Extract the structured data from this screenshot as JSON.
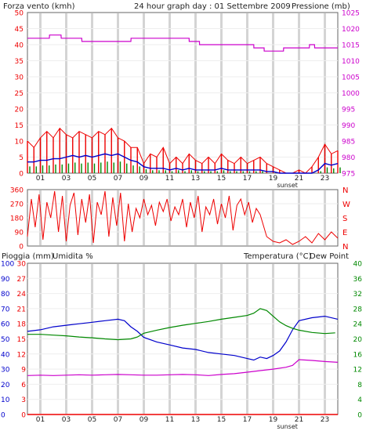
{
  "header": {
    "title": "24 hour graph day : 01 Settembre 2009"
  },
  "colors": {
    "wind": "#ee0000",
    "wind_avg": "#0000cc",
    "wind_mid": "#008800",
    "pressure": "#cc00cc",
    "direction": "#ee0000",
    "rain": "#ee0000",
    "humidity": "#0000cc",
    "temperature": "#008800",
    "dewpoint": "#cc00cc"
  },
  "chart_data": [
    {
      "type": "line",
      "panel": "wind-pressure",
      "title": "24 hour graph day : 01 Settembre 2009",
      "ylabel_left": "Forza vento (kmh)",
      "ylabel_right": "Pressione (mb)",
      "ylim_left": [
        0,
        50
      ],
      "ylim_right": [
        975,
        1025
      ],
      "yticks_left": [
        "0",
        "5",
        "10",
        "15",
        "20",
        "25",
        "30",
        "35",
        "40",
        "45",
        "50"
      ],
      "yticks_right": [
        "975",
        "980",
        "985",
        "990",
        "995",
        "1000",
        "1005",
        "1010",
        "1015",
        "1020",
        "1025"
      ],
      "xticks": [
        "01",
        "03",
        "05",
        "07",
        "09",
        "11",
        "13",
        "15",
        "17",
        "19",
        "21",
        "23"
      ],
      "annotation": "sunset",
      "series": [
        {
          "name": "Pressione",
          "axis": "right",
          "x": [
            0,
            1.7,
            1.71,
            2.6,
            2.61,
            4.2,
            4.21,
            8.0,
            8.01,
            12.5,
            12.51,
            13.3,
            13.31,
            17.5,
            17.51,
            18.3,
            18.31,
            19.8,
            19.81,
            21.8,
            21.81,
            22.2,
            22.21,
            24
          ],
          "y": [
            1017,
            1017,
            1018,
            1018,
            1017,
            1017,
            1016,
            1016,
            1017,
            1017,
            1016,
            1016,
            1015,
            1015,
            1014,
            1014,
            1013,
            1013,
            1014,
            1014,
            1015,
            1015,
            1014,
            1014
          ]
        },
        {
          "name": "Raffica",
          "axis": "left",
          "x": [
            0,
            0.5,
            1.0,
            1.5,
            2.0,
            2.5,
            3.0,
            3.5,
            4.0,
            4.5,
            5.0,
            5.5,
            6.0,
            6.5,
            7.0,
            7.5,
            8.0,
            8.5,
            9.0,
            9.5,
            10.0,
            10.5,
            11.0,
            11.5,
            12.0,
            12.5,
            13.0,
            13.5,
            14.0,
            14.5,
            15.0,
            15.5,
            16.0,
            16.5,
            17.0,
            17.5,
            18.0,
            18.5,
            19.0,
            19.5,
            20.0,
            20.5,
            21.0,
            21.5,
            22.0,
            22.5,
            23.0,
            23.5,
            24.0
          ],
          "y": [
            10,
            8,
            11,
            13,
            11,
            14,
            12,
            11,
            13,
            12,
            11,
            13,
            12,
            14,
            11,
            10,
            8,
            8,
            3,
            6,
            5,
            8,
            3,
            5,
            3,
            6,
            4,
            3,
            5,
            3,
            6,
            4,
            3,
            5,
            3,
            4,
            5,
            3,
            2,
            1,
            0,
            0,
            1,
            0,
            2,
            5,
            9,
            6,
            7
          ]
        },
        {
          "name": "Vento medio",
          "axis": "left",
          "x": [
            0,
            0.5,
            1.0,
            1.5,
            2.0,
            2.5,
            3.0,
            3.5,
            4.0,
            4.5,
            5.0,
            5.5,
            6.0,
            6.5,
            7.0,
            7.5,
            8.0,
            8.5,
            9.0,
            9.5,
            10.0,
            10.5,
            11.0,
            11.5,
            12.0,
            12.5,
            13.0,
            13.5,
            14.0,
            14.5,
            15.0,
            15.5,
            16.0,
            16.5,
            17.0,
            17.5,
            18.0,
            18.5,
            19.0,
            19.5,
            20.0,
            20.5,
            21.0,
            21.5,
            22.0,
            22.5,
            23.0,
            23.5,
            24.0
          ],
          "y": [
            3.5,
            3.5,
            4,
            4,
            4.5,
            4.5,
            5,
            5.5,
            5,
            5.5,
            5,
            5.5,
            6,
            5.5,
            6,
            5,
            4,
            3.5,
            2,
            1.5,
            1.5,
            1.5,
            1,
            1.5,
            1,
            1.5,
            1,
            1,
            1,
            1,
            1.5,
            1,
            1,
            1,
            1,
            1,
            1,
            0.5,
            0.5,
            0,
            0,
            0,
            0,
            0,
            0,
            1,
            3,
            2.5,
            3
          ]
        }
      ]
    },
    {
      "type": "line",
      "panel": "direction",
      "ylim": [
        0,
        360
      ],
      "yticks": [
        "0",
        "90",
        "180",
        "270",
        "360"
      ],
      "cardinals": [
        "N",
        "W",
        "S",
        "E",
        "N"
      ],
      "series": [
        {
          "name": "Direzione",
          "x": [
            0,
            0.3,
            0.6,
            0.9,
            1.2,
            1.5,
            1.8,
            2.1,
            2.4,
            2.7,
            3.0,
            3.3,
            3.6,
            3.9,
            4.2,
            4.5,
            4.8,
            5.1,
            5.4,
            5.7,
            6.0,
            6.3,
            6.6,
            6.9,
            7.2,
            7.5,
            7.8,
            8.1,
            8.4,
            8.7,
            9.0,
            9.3,
            9.6,
            9.9,
            10.2,
            10.5,
            10.8,
            11.1,
            11.4,
            11.7,
            12.0,
            12.3,
            12.6,
            12.9,
            13.2,
            13.5,
            13.8,
            14.1,
            14.4,
            14.7,
            15.0,
            15.3,
            15.6,
            15.9,
            16.2,
            16.5,
            16.8,
            17.1,
            17.4,
            17.7,
            18.0,
            18.5,
            19.0,
            19.5,
            20.0,
            20.5,
            21.0,
            21.5,
            22.0,
            22.5,
            23.0,
            23.5,
            24.0
          ],
          "y": [
            60,
            300,
            120,
            330,
            40,
            280,
            180,
            350,
            90,
            320,
            30,
            260,
            340,
            70,
            300,
            150,
            330,
            20,
            280,
            200,
            350,
            60,
            310,
            130,
            340,
            30,
            270,
            90,
            240,
            180,
            300,
            200,
            260,
            130,
            280,
            220,
            300,
            160,
            250,
            200,
            300,
            120,
            280,
            180,
            320,
            90,
            250,
            200,
            300,
            140,
            270,
            180,
            320,
            100,
            260,
            300,
            200,
            280,
            150,
            240,
            200,
            60,
            30,
            20,
            40,
            10,
            30,
            60,
            20,
            80,
            40,
            90,
            50
          ]
        }
      ]
    },
    {
      "type": "line",
      "panel": "rain-humidity-temperature",
      "ylabel_left": "Pioggia (mm)",
      "ylabel_left2": "Umidita %",
      "ylabel_right": "Temperatura (°C)",
      "ylabel_right2": "Dew Point",
      "ylim_rain": [
        0,
        30
      ],
      "ylim_humidity": [
        0,
        100
      ],
      "ylim_temperature": [
        0,
        40
      ],
      "yticks_humidity": [
        "0",
        "10",
        "20",
        "30",
        "40",
        "50",
        "60",
        "70",
        "80",
        "90",
        "100"
      ],
      "yticks_rain": [
        "0",
        "3",
        "6",
        "9",
        "12",
        "15",
        "18",
        "21",
        "24",
        "27",
        "30"
      ],
      "yticks_temperature": [
        "0",
        "4",
        "8",
        "12",
        "16",
        "20",
        "24",
        "28",
        "32",
        "36",
        "40"
      ],
      "xticks": [
        "01",
        "03",
        "05",
        "07",
        "09",
        "11",
        "13",
        "15",
        "17",
        "19",
        "21",
        "23"
      ],
      "annotation": "sunset",
      "series": [
        {
          "name": "Pioggia",
          "axis": "rain",
          "x": [
            0,
            24
          ],
          "y": [
            0,
            0
          ]
        },
        {
          "name": "Umidita",
          "axis": "humidity",
          "x": [
            0,
            1,
            2,
            3,
            4,
            5,
            6,
            7,
            7.5,
            8,
            8.5,
            9,
            10,
            11,
            12,
            13,
            14,
            15,
            16,
            17,
            17.5,
            18,
            18.5,
            19,
            19.5,
            20,
            20.5,
            21,
            22,
            23,
            24
          ],
          "y": [
            55,
            56,
            58,
            59,
            60,
            61,
            62,
            63,
            62,
            58,
            55,
            51,
            48,
            46,
            44,
            43,
            41,
            40,
            39,
            37,
            36,
            38,
            37,
            39,
            42,
            48,
            56,
            62,
            64,
            65,
            63
          ]
        },
        {
          "name": "Temperatura",
          "axis": "temperature",
          "x": [
            0,
            1,
            2,
            3,
            4,
            5,
            6,
            7,
            8,
            8.5,
            9,
            10,
            11,
            12,
            13,
            14,
            15,
            16,
            17,
            17.5,
            18,
            18.5,
            19,
            19.5,
            20,
            20.5,
            21,
            22,
            23,
            23.8
          ],
          "y": [
            21.2,
            21.2,
            21,
            20.8,
            20.5,
            20.3,
            20,
            19.8,
            20,
            20.5,
            21.5,
            22.3,
            23,
            23.6,
            24.1,
            24.6,
            25.2,
            25.7,
            26.2,
            26.8,
            28,
            27.5,
            26,
            24.5,
            23.5,
            22.8,
            22.3,
            21.7,
            21.4,
            21.6
          ]
        },
        {
          "name": "Dew Point",
          "axis": "temperature",
          "x": [
            0,
            1,
            2,
            3,
            4,
            5,
            6,
            7,
            8,
            9,
            10,
            11,
            12,
            13,
            14,
            15,
            16,
            17,
            18,
            19,
            20,
            20.5,
            21,
            22,
            23,
            24
          ],
          "y": [
            10.3,
            10.4,
            10.3,
            10.4,
            10.5,
            10.4,
            10.5,
            10.6,
            10.5,
            10.4,
            10.4,
            10.5,
            10.6,
            10.5,
            10.3,
            10.6,
            10.8,
            11.2,
            11.6,
            12,
            12.5,
            13,
            14.5,
            14.3,
            14,
            13.8
          ]
        }
      ]
    }
  ]
}
